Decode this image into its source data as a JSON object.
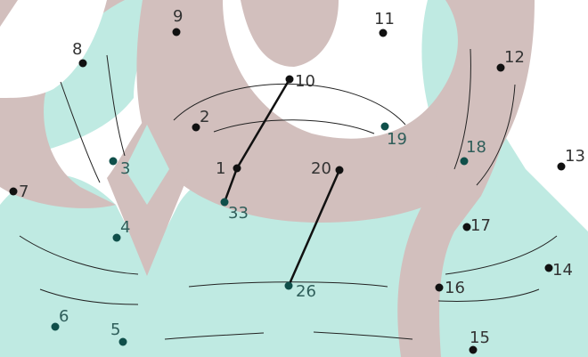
{
  "puzzle": {
    "colors": {
      "rose": "#d2bfbd",
      "mint": "#bfeae2",
      "dot_dark": "#111111",
      "dot_teal": "#0f4f4a",
      "label_dark": "#333333",
      "label_teal": "#2f5e5a",
      "segment": "#111111",
      "guide": "#222222"
    },
    "segments": [
      {
        "from": "10",
        "to": "1"
      },
      {
        "from": "1",
        "to": "33"
      },
      {
        "from": "20",
        "to": "26"
      }
    ],
    "dots": [
      {
        "label": "1",
        "tone": "dark"
      },
      {
        "label": "2",
        "tone": "dark"
      },
      {
        "label": "3",
        "tone": "teal"
      },
      {
        "label": "4",
        "tone": "teal"
      },
      {
        "label": "5",
        "tone": "teal"
      },
      {
        "label": "6",
        "tone": "teal"
      },
      {
        "label": "7",
        "tone": "dark"
      },
      {
        "label": "8",
        "tone": "dark"
      },
      {
        "label": "9",
        "tone": "dark"
      },
      {
        "label": "10",
        "tone": "dark"
      },
      {
        "label": "11",
        "tone": "dark"
      },
      {
        "label": "12",
        "tone": "dark"
      },
      {
        "label": "13",
        "tone": "dark"
      },
      {
        "label": "14",
        "tone": "dark"
      },
      {
        "label": "15",
        "tone": "dark"
      },
      {
        "label": "16",
        "tone": "dark"
      },
      {
        "label": "17",
        "tone": "dark"
      },
      {
        "label": "18",
        "tone": "teal"
      },
      {
        "label": "19",
        "tone": "teal"
      },
      {
        "label": "20",
        "tone": "dark"
      },
      {
        "label": "26",
        "tone": "teal"
      },
      {
        "label": "33",
        "tone": "teal"
      }
    ]
  }
}
